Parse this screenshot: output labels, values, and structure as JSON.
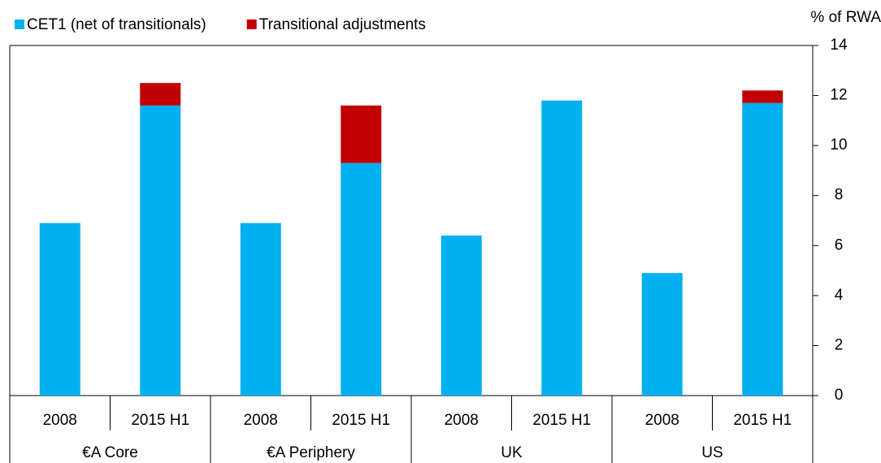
{
  "chart_data": {
    "type": "stacked-bar",
    "y_axis_label": "% of RWA",
    "categories": [
      "2008",
      "2015 H1",
      "2008",
      "2015 H1",
      "2008",
      "2015 H1",
      "2008",
      "2015 H1"
    ],
    "groups": [
      "€A Core",
      "€A Periphery",
      "UK",
      "US"
    ],
    "series": [
      {
        "name": "CET1 (net of transitionals)",
        "color": "#00b0f0",
        "values": [
          6.9,
          11.6,
          6.9,
          9.3,
          6.4,
          11.8,
          4.9,
          11.7
        ]
      },
      {
        "name": "Transitional adjustments",
        "color": "#c00000",
        "values": [
          0,
          0.9,
          0,
          2.3,
          0,
          0,
          0,
          0.5
        ]
      }
    ],
    "ylim": [
      0,
      14
    ],
    "yticks": [
      0,
      2,
      4,
      6,
      8,
      10,
      12,
      14
    ],
    "y_axis_side": "right",
    "legend": "top-left"
  }
}
